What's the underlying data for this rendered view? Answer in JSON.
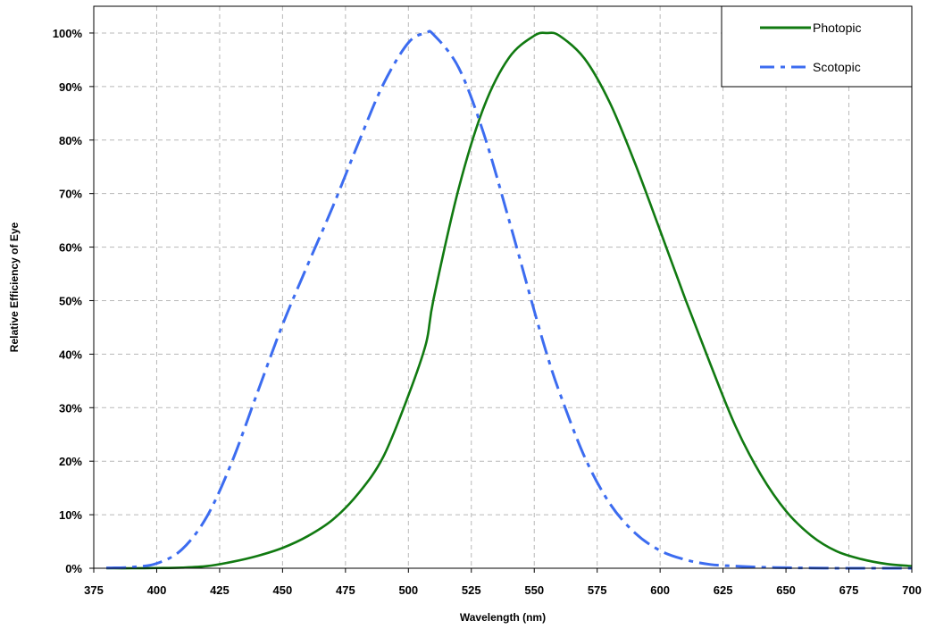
{
  "chart_data": {
    "type": "line",
    "title": "",
    "xlabel": "Wavelength (nm)",
    "ylabel": "Relative Efficiency of Eye",
    "xlim": [
      375,
      700
    ],
    "ylim": [
      0,
      105
    ],
    "x_ticks": [
      375,
      400,
      425,
      450,
      475,
      500,
      525,
      550,
      575,
      600,
      625,
      650,
      675,
      700
    ],
    "y_ticks": [
      0,
      10,
      20,
      30,
      40,
      50,
      60,
      70,
      80,
      90,
      100
    ],
    "y_tick_labels": [
      "0%",
      "10%",
      "20%",
      "30%",
      "40%",
      "50%",
      "60%",
      "70%",
      "80%",
      "90%",
      "100%"
    ],
    "grid": true,
    "legend_position": "top-right",
    "x": [
      380,
      390,
      400,
      410,
      420,
      430,
      440,
      450,
      460,
      470,
      480,
      490,
      500,
      507,
      510,
      520,
      530,
      540,
      550,
      555,
      560,
      570,
      580,
      590,
      600,
      610,
      620,
      630,
      640,
      650,
      660,
      670,
      680,
      690,
      700
    ],
    "series": [
      {
        "name": "Photopic",
        "color": "#117a11",
        "style": "solid",
        "values": [
          0.0,
          0.0,
          0.04,
          0.12,
          0.4,
          1.2,
          2.3,
          3.8,
          6.0,
          9.1,
          13.9,
          20.8,
          32.3,
          42.0,
          50.3,
          71.0,
          86.2,
          95.4,
          99.5,
          100.0,
          99.5,
          95.2,
          87.0,
          75.7,
          63.1,
          50.3,
          38.1,
          26.5,
          17.5,
          10.7,
          6.1,
          3.2,
          1.7,
          0.8,
          0.4
        ]
      },
      {
        "name": "Scotopic",
        "color": "#3c6cf0",
        "style": "dashdot",
        "values": [
          0.06,
          0.2,
          0.9,
          3.5,
          9.7,
          20.0,
          32.8,
          45.5,
          56.7,
          67.6,
          79.3,
          90.4,
          98.2,
          100.0,
          99.7,
          93.5,
          81.1,
          65.0,
          48.1,
          40.0,
          32.9,
          20.8,
          12.1,
          6.6,
          3.3,
          1.6,
          0.7,
          0.4,
          0.2,
          0.1,
          0.05,
          0.0,
          0.0,
          0.0,
          0.0
        ]
      }
    ]
  }
}
